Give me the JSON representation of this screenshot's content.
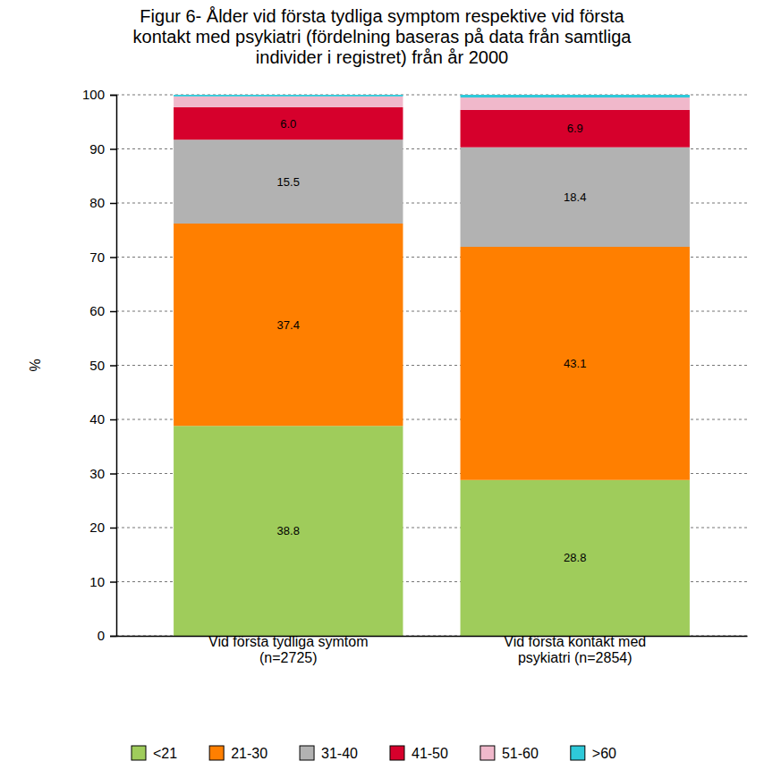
{
  "chart_data": {
    "type": "bar",
    "stacked": true,
    "title": "Figur 6- Ålder vid första tydliga symptom respektive vid första\nkontakt med psykiatri (fördelning baseras på data från samtliga\nindivider i registret) från år 2000",
    "ylabel": "%",
    "categories": [
      "Vid första tydliga symtom\n(n=2725)",
      "Vid första kontakt med\npsykiatri (n=2854)"
    ],
    "series": [
      {
        "name": "<21",
        "color": "#9fcc5b",
        "values": [
          38.8,
          28.8
        ],
        "data_labels": true
      },
      {
        "name": "21-30",
        "color": "#ff7f00",
        "values": [
          37.4,
          43.1
        ],
        "data_labels": true
      },
      {
        "name": "31-40",
        "color": "#b2b2b2",
        "values": [
          15.5,
          18.4
        ],
        "data_labels": true
      },
      {
        "name": "41-50",
        "color": "#d6002c",
        "values": [
          6.0,
          6.9
        ],
        "value_labels": [
          "6.0",
          "6.9"
        ],
        "data_labels": true
      },
      {
        "name": "51-60",
        "color": "#f0b8cb",
        "values": [
          2.0,
          2.3
        ],
        "data_labels": false
      },
      {
        "name": ">60",
        "color": "#2ec9d9",
        "values": [
          0.3,
          0.5
        ],
        "data_labels": false
      }
    ],
    "ylim": [
      0,
      100
    ],
    "yticks": [
      0,
      10,
      20,
      30,
      40,
      50,
      60,
      70,
      80,
      90,
      100
    ],
    "grid": true,
    "legend": "bottom"
  }
}
